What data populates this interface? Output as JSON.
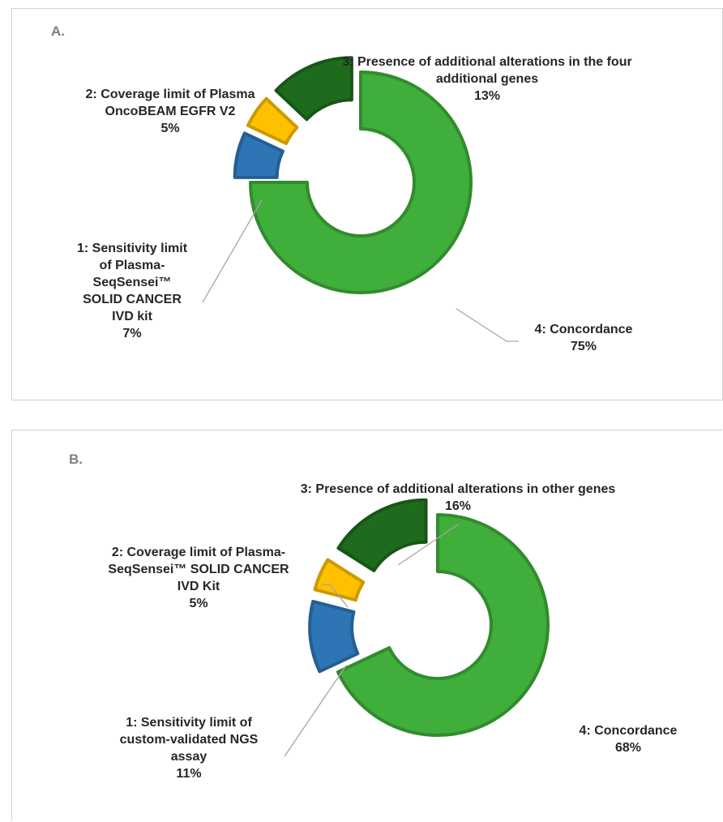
{
  "colors": {
    "sensitivity": "#2e75b6",
    "coverage": "#ffc000",
    "additional": "#1e6b1e",
    "concordance": "#3fae3a"
  },
  "chart_data": [
    {
      "type": "pie",
      "style": "exploded-donut",
      "panel_label": "A.",
      "slices": [
        {
          "label_lines": [
            "1: Sensitivity limit",
            "of Plasma-",
            "SeqSensei™",
            "SOLID CANCER",
            "IVD kit"
          ],
          "value": 7,
          "value_text": "7%",
          "color": "#2e75b6"
        },
        {
          "label_lines": [
            "2: Coverage limit of Plasma",
            "OncoBEAM EGFR V2"
          ],
          "value": 5,
          "value_text": "5%",
          "color": "#ffc000"
        },
        {
          "label_lines": [
            "3: Presence of additional alterations in the four",
            "additional genes"
          ],
          "value": 13,
          "value_text": "13%",
          "color": "#1e6b1e"
        },
        {
          "label_lines": [
            "4: Concordance"
          ],
          "value": 75,
          "value_text": "75%",
          "color": "#3fae3a"
        }
      ]
    },
    {
      "type": "pie",
      "style": "exploded-donut",
      "panel_label": "B.",
      "slices": [
        {
          "label_lines": [
            "1: Sensitivity limit of",
            "custom-validated NGS",
            "assay"
          ],
          "value": 11,
          "value_text": "11%",
          "color": "#2e75b6"
        },
        {
          "label_lines": [
            "2: Coverage limit of Plasma-",
            "SeqSensei™ SOLID CANCER",
            "IVD  Kit"
          ],
          "value": 5,
          "value_text": "5%",
          "color": "#ffc000"
        },
        {
          "label_lines": [
            "3: Presence of additional alterations in other genes"
          ],
          "value": 16,
          "value_text": "16%",
          "color": "#1e6b1e"
        },
        {
          "label_lines": [
            "4: Concordance"
          ],
          "value": 68,
          "value_text": "68%",
          "color": "#3fae3a"
        }
      ]
    }
  ]
}
